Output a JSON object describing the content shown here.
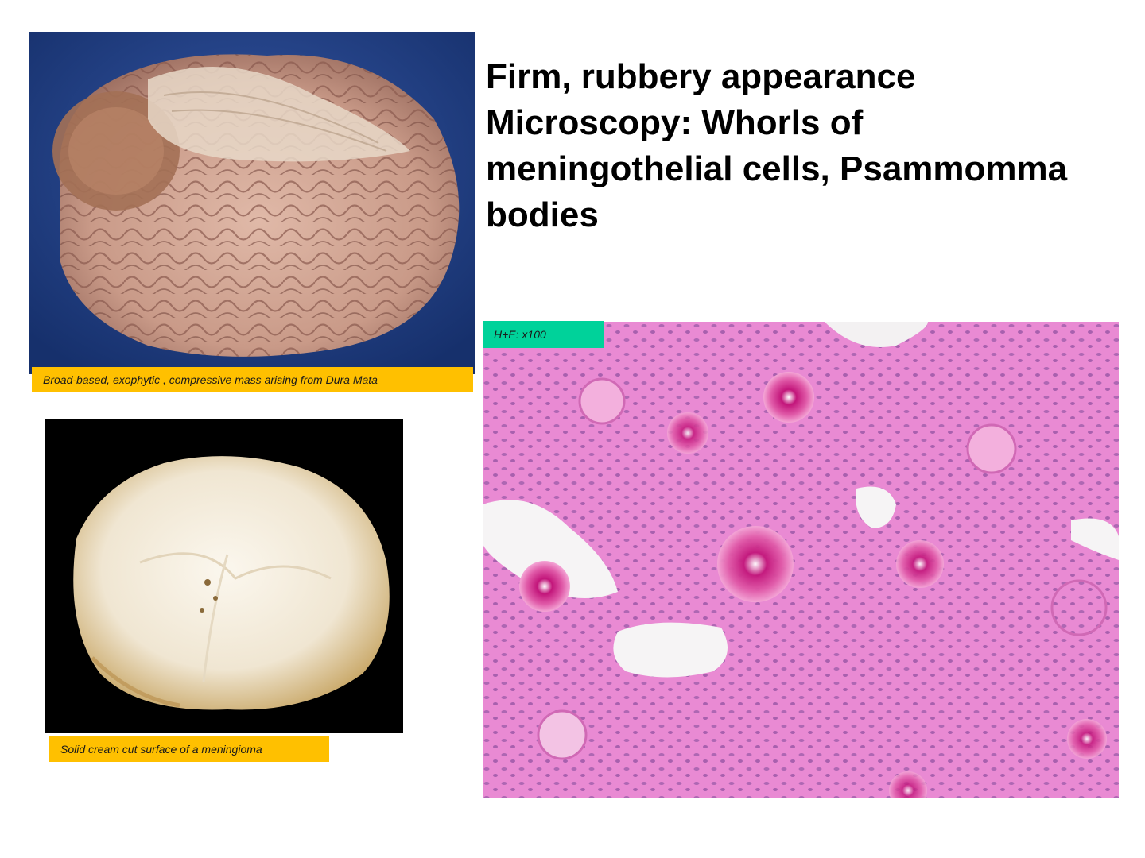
{
  "heading": {
    "lines": [
      "Firm, rubbery appearance",
      "Microscopy: Whorls of",
      "meningothelial cells, Psammomma",
      "bodies"
    ]
  },
  "images": {
    "gross": {
      "caption": "Broad-based, exophytic , compressive mass arising from Dura Mata",
      "caption_color": "#ffc000"
    },
    "cut_surface": {
      "caption": "Solid cream cut surface of a meningioma",
      "caption_color": "#ffc000"
    },
    "micrograph": {
      "caption": "H+E: x100",
      "caption_color": "#00d29a"
    }
  }
}
